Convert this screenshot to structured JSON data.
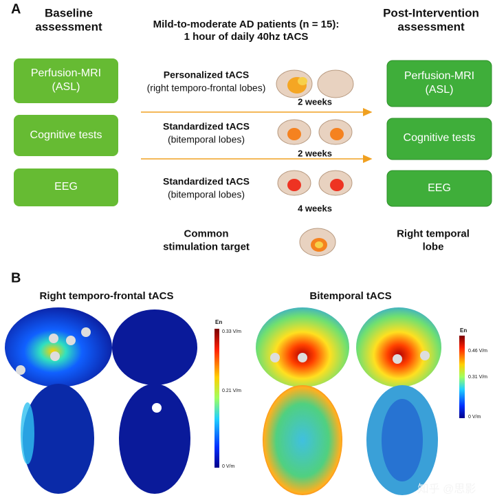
{
  "panel_a": {
    "label": "A",
    "baseline_title": [
      "Baseline",
      "assessment"
    ],
    "center_title": [
      "Mild-to-moderate AD patients (n = 15):",
      "1 hour of daily 40hz tACS"
    ],
    "post_title": [
      "Post-Intervention",
      "assessment"
    ],
    "baseline_boxes": [
      [
        "Perfusion-MRI",
        "(ASL)"
      ],
      [
        "Cognitive tests"
      ],
      [
        "EEG"
      ]
    ],
    "post_boxes": [
      [
        "Perfusion-MRI",
        "(ASL)"
      ],
      [
        "Cognitive tests"
      ],
      [
        "EEG"
      ]
    ],
    "protocols": [
      {
        "name": "Personalized tACS",
        "detail": "(right temporo-frontal lobes)",
        "duration": "2 weeks"
      },
      {
        "name": "Standardized tACS",
        "detail": "(bitemporal lobes)",
        "duration": "2 weeks"
      },
      {
        "name": "Standardized tACS",
        "detail": "(bitemporal lobes)",
        "duration": "4 weeks"
      }
    ],
    "common_target": {
      "label": [
        "Common",
        "stimulation target"
      ],
      "value": [
        "Right temporal",
        "lobe"
      ]
    }
  },
  "panel_b": {
    "label": "B",
    "left_title": "Right temporo-frontal tACS",
    "right_title": "Bitemporal tACS",
    "left_colorbar": {
      "title": "En",
      "ticks": [
        "0.33 V/m",
        "0.21 V/m",
        "0 V/m"
      ]
    },
    "right_colorbar": {
      "title": "En",
      "ticks": [
        "0.46 V/m",
        "0.31 V/m",
        "0 V/m"
      ]
    },
    "watermark": "知乎 @思影"
  }
}
